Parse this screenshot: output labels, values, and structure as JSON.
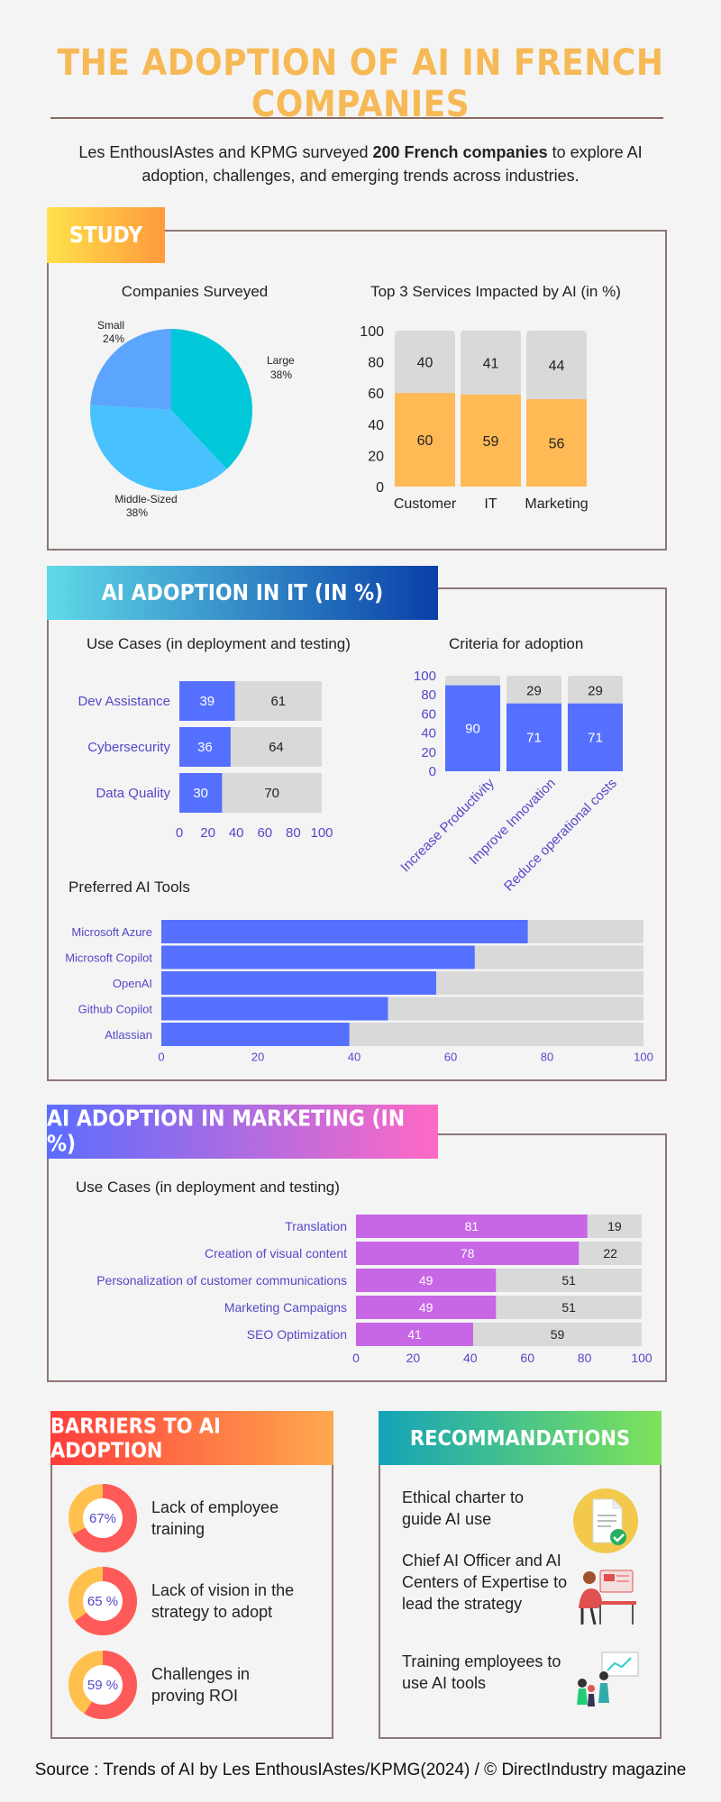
{
  "title": "THE ADOPTION OF AI IN FRENCH COMPANIES",
  "intro": {
    "pre": "Les EnthousIAstes and KPMG surveyed ",
    "bold": "200 French companies",
    "post": " to explore AI adoption, challenges, and emerging trends across industries."
  },
  "sections": {
    "study": "STUDY",
    "it": "AI ADOPTION IN IT (IN %)",
    "marketing": "AI ADOPTION IN MARKETING (IN %)",
    "barriers": "BARRIERS TO AI ADOPTION",
    "recommendations": "RECOMMANDATIONS"
  },
  "colors": {
    "pie": [
      "#00c8d8",
      "#48c2ff",
      "#5ca5ff"
    ],
    "orange": "#ffb955",
    "gray": "#d9d9d9",
    "blue": "#5570ff",
    "purple": "#c767e5",
    "indigo": "#5548c8"
  },
  "chart_data": [
    {
      "id": "companies",
      "type": "pie",
      "title": "Companies Surveyed",
      "labels": [
        "Large",
        "Middle-Sized",
        "Small"
      ],
      "values": [
        38,
        38,
        24
      ],
      "value_labels": [
        "38%",
        "38%",
        "24%"
      ]
    },
    {
      "id": "services",
      "type": "bar",
      "stacked": true,
      "title": "Top 3 Services Impacted by AI (in %)",
      "categories": [
        "Customer",
        "IT",
        "Marketing"
      ],
      "series": [
        {
          "values": [
            60,
            59,
            56
          ]
        },
        {
          "values": [
            40,
            41,
            44
          ]
        }
      ],
      "ylim": [
        0,
        100
      ],
      "yticks": [
        "0",
        "20",
        "40",
        "60",
        "80",
        "100"
      ]
    },
    {
      "id": "it_usecases",
      "type": "bar",
      "orientation": "horizontal",
      "stacked": true,
      "title": "Use Cases (in deployment and testing)",
      "categories": [
        "Dev Assistance",
        "Cybersecurity",
        "Data Quality"
      ],
      "series": [
        {
          "values": [
            39,
            36,
            30
          ]
        },
        {
          "values": [
            61,
            64,
            70
          ]
        }
      ],
      "xlim": [
        0,
        100
      ],
      "xticks": [
        "0",
        "20",
        "40",
        "60",
        "80",
        "100"
      ]
    },
    {
      "id": "criteria",
      "type": "bar",
      "stacked": true,
      "title": "Criteria for adoption",
      "categories": [
        "Increase Productivity",
        "Improve Innovation",
        "Reduce operational costs"
      ],
      "series": [
        {
          "values": [
            90,
            71,
            71
          ]
        },
        {
          "values": [
            10,
            29,
            29
          ]
        }
      ],
      "top_labels": [
        "",
        "29",
        "29"
      ],
      "ylim": [
        0,
        100
      ],
      "yticks": [
        "0",
        "20",
        "40",
        "60",
        "80",
        "100"
      ]
    },
    {
      "id": "tools",
      "type": "bar",
      "orientation": "horizontal",
      "title": "Preferred AI Tools",
      "categories": [
        "Microsoft Azure",
        "Microsoft Copilot",
        "OpenAI",
        "Github Copilot",
        "Atlassian"
      ],
      "values": [
        76,
        65,
        57,
        47,
        39
      ],
      "xlim": [
        0,
        100
      ],
      "xticks": [
        "0",
        "20",
        "40",
        "60",
        "80",
        "100"
      ]
    },
    {
      "id": "mkt_usecases",
      "type": "bar",
      "orientation": "horizontal",
      "stacked": true,
      "title": "Use Cases (in deployment and testing)",
      "categories": [
        "Translation",
        "Creation of visual content",
        "Personalization of customer communications",
        "Marketing Campaigns",
        "SEO Optimization"
      ],
      "series": [
        {
          "values": [
            81,
            78,
            49,
            49,
            41
          ]
        },
        {
          "values": [
            19,
            22,
            51,
            51,
            59
          ]
        }
      ],
      "xlim": [
        0,
        100
      ],
      "xticks": [
        "0",
        "20",
        "40",
        "60",
        "80",
        "100"
      ]
    },
    {
      "id": "barriers",
      "type": "pie",
      "subtype": "donut",
      "labels": [
        "Lack of employee training",
        "Lack of vision in the strategy to adopt",
        "Challenges in proving ROI"
      ],
      "values": [
        67,
        65,
        59
      ],
      "value_labels": [
        "67%",
        "65 %",
        "59 %"
      ]
    }
  ],
  "recommendations": [
    {
      "text": "Ethical charter to guide AI use",
      "icon": "document-check-icon"
    },
    {
      "text": "Chief AI Officer and AI Centers of Expertise to lead the strategy",
      "icon": "team-leader-icon"
    },
    {
      "text": "Training employees to use AI tools",
      "icon": "training-icon"
    }
  ],
  "footer": "Source : Trends of AI by Les EnthousIAstes/KPMG(2024) / © DirectIndustry magazine"
}
